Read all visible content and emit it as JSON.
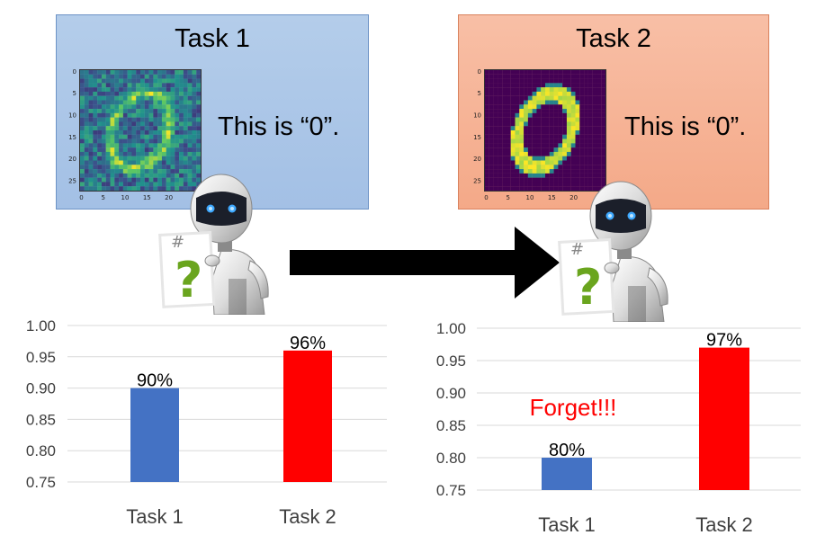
{
  "task1": {
    "title": "Task 1",
    "caption": "This is “0”."
  },
  "task2": {
    "title": "Task 2",
    "caption": "This is “0”."
  },
  "digit_axis": {
    "ticks_y": [
      "0",
      "5",
      "10",
      "15",
      "20",
      "25"
    ],
    "ticks_x": [
      "0",
      "5",
      "10",
      "15",
      "20"
    ]
  },
  "robot": {
    "sign_text": "?",
    "sign_tag": "#"
  },
  "colors": {
    "task1_bar": "#4472c4",
    "task2_bar": "#ff0000",
    "grid": "#d9d9d9",
    "forget": "#ff0000"
  },
  "chart_data": [
    {
      "type": "bar",
      "categories": [
        "Task 1",
        "Task 2"
      ],
      "values": [
        0.9,
        0.96
      ],
      "data_labels": [
        "90%",
        "96%"
      ],
      "ylim": [
        0.75,
        1.0
      ],
      "yticks": [
        "1.00",
        "0.95",
        "0.90",
        "0.85",
        "0.80",
        "0.75"
      ],
      "title": "",
      "xlabel": "",
      "ylabel": "",
      "grid": true
    },
    {
      "type": "bar",
      "categories": [
        "Task 1",
        "Task 2"
      ],
      "values": [
        0.8,
        0.97
      ],
      "data_labels": [
        "80%",
        "97%"
      ],
      "ylim": [
        0.75,
        1.0
      ],
      "yticks": [
        "1.00",
        "0.95",
        "0.90",
        "0.85",
        "0.80",
        "0.75"
      ],
      "title": "",
      "xlabel": "",
      "ylabel": "",
      "grid": true,
      "annotation": "Forget!!!"
    }
  ]
}
